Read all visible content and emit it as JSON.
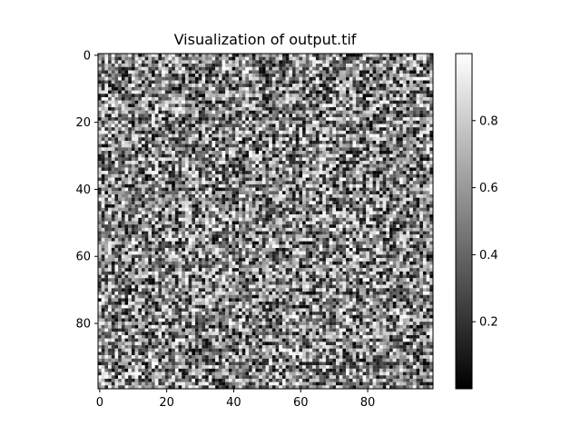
{
  "chart_data": {
    "type": "heatmap",
    "title": "Visualization of output.tif",
    "image_shape": [
      100,
      100
    ],
    "colormap": "gray",
    "value_range": [
      0.0,
      1.0
    ],
    "x_ticks": [
      0,
      20,
      40,
      60,
      80
    ],
    "y_ticks": [
      0,
      20,
      40,
      60,
      80
    ],
    "colorbar": {
      "ticks": [
        0.2,
        0.4,
        0.6,
        0.8
      ],
      "range": [
        0.0,
        1.0
      ]
    }
  }
}
